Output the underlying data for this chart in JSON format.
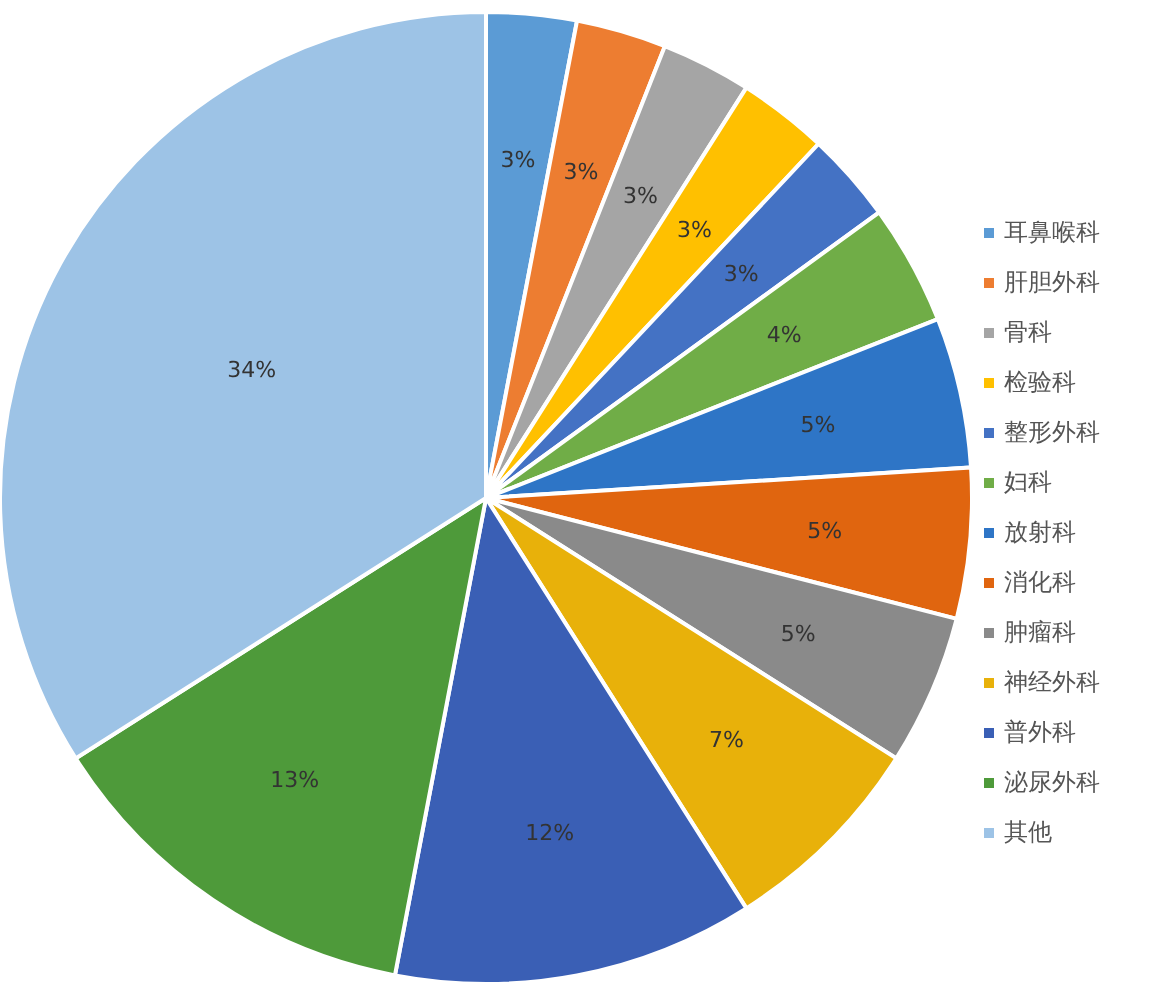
{
  "chart_data": {
    "type": "pie",
    "categories": [
      "耳鼻喉科",
      "肝胆外科",
      "骨科",
      "检验科",
      "整形外科",
      "妇科",
      "放射科",
      "消化科",
      "肿瘤科",
      "神经外科",
      "普外科",
      "泌尿外科",
      "其他"
    ],
    "values": [
      3,
      3,
      3,
      3,
      3,
      4,
      5,
      5,
      5,
      7,
      12,
      13,
      34
    ],
    "value_labels": [
      "3%",
      "3%",
      "3%",
      "3%",
      "3%",
      "4%",
      "5%",
      "5%",
      "5%",
      "7%",
      "12%",
      "13%",
      "34%"
    ],
    "colors": [
      "#5b9bd5",
      "#ed7d31",
      "#a5a5a5",
      "#ffc000",
      "#4472c4",
      "#70ad47",
      "#2e75c6",
      "#e0650f",
      "#8a8a8a",
      "#e8b10a",
      "#3a5fb5",
      "#4e9a3a",
      "#9dc3e6"
    ],
    "legend": "right"
  }
}
